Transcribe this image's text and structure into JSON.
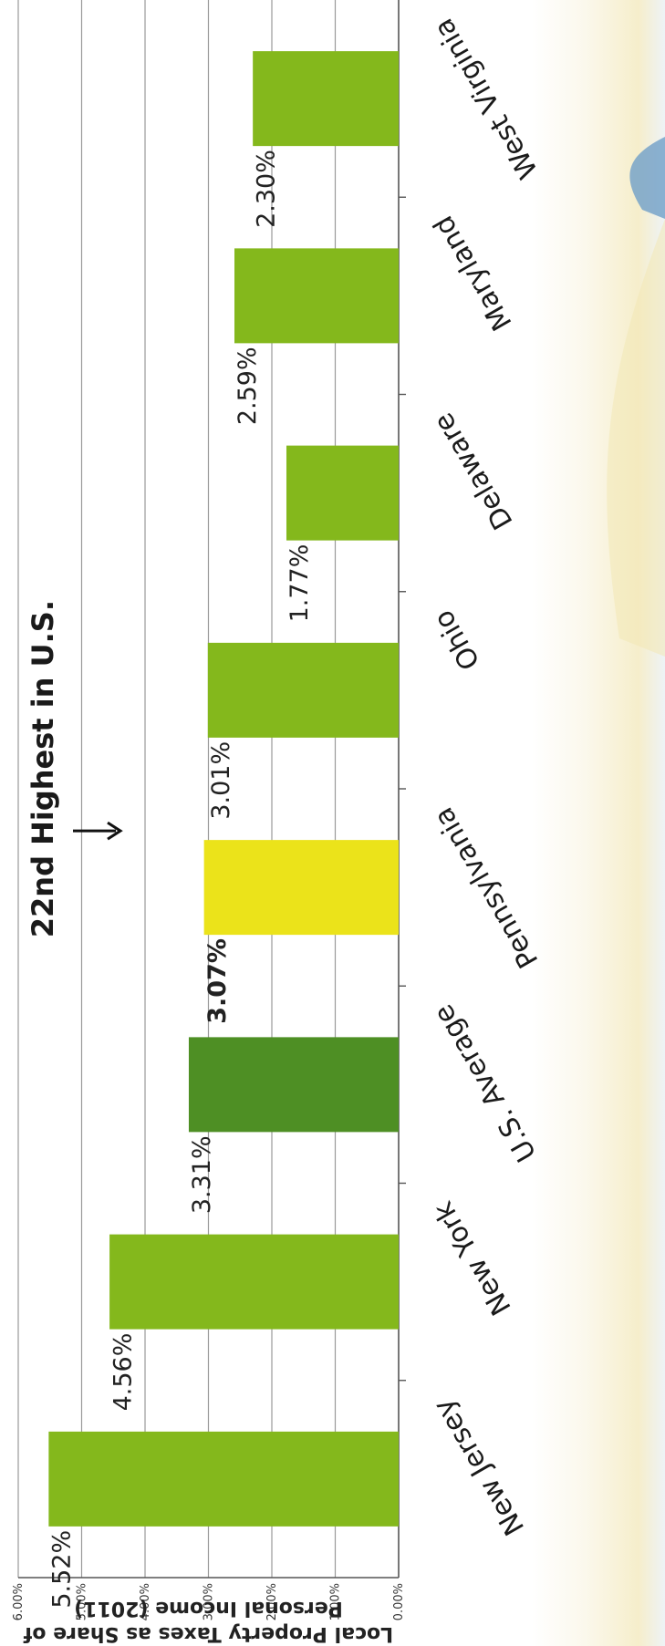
{
  "chart_data": {
    "type": "bar",
    "ylabel": "Local Property Taxes as Share of Personal Income (2011)",
    "categories": [
      "New Jersey",
      "New York",
      "U.S. Average",
      "Pennsylvania",
      "Ohio",
      "Delaware",
      "Maryland",
      "West Virginia"
    ],
    "values": [
      5.52,
      4.56,
      3.31,
      3.07,
      3.01,
      1.77,
      2.59,
      2.3
    ],
    "value_labels": [
      "5.52%",
      "4.56%",
      "3.31%",
      "3.07%",
      "3.01%",
      "1.77%",
      "2.59%",
      "2.30%"
    ],
    "ylim": [
      0,
      6
    ],
    "yticks": [
      "0.00%",
      "1.00%",
      "2.00%",
      "3.00%",
      "4.00%",
      "5.00%",
      "6.00%"
    ],
    "grid": true,
    "annotation": "22nd Highest in U.S.",
    "colors": {
      "default": "#84b81c",
      "U.S. Average": "#4e8f24",
      "Pennsylvania": "#ebe31a",
      "gridline": "#9a9a9a",
      "axis": "#555555"
    }
  }
}
